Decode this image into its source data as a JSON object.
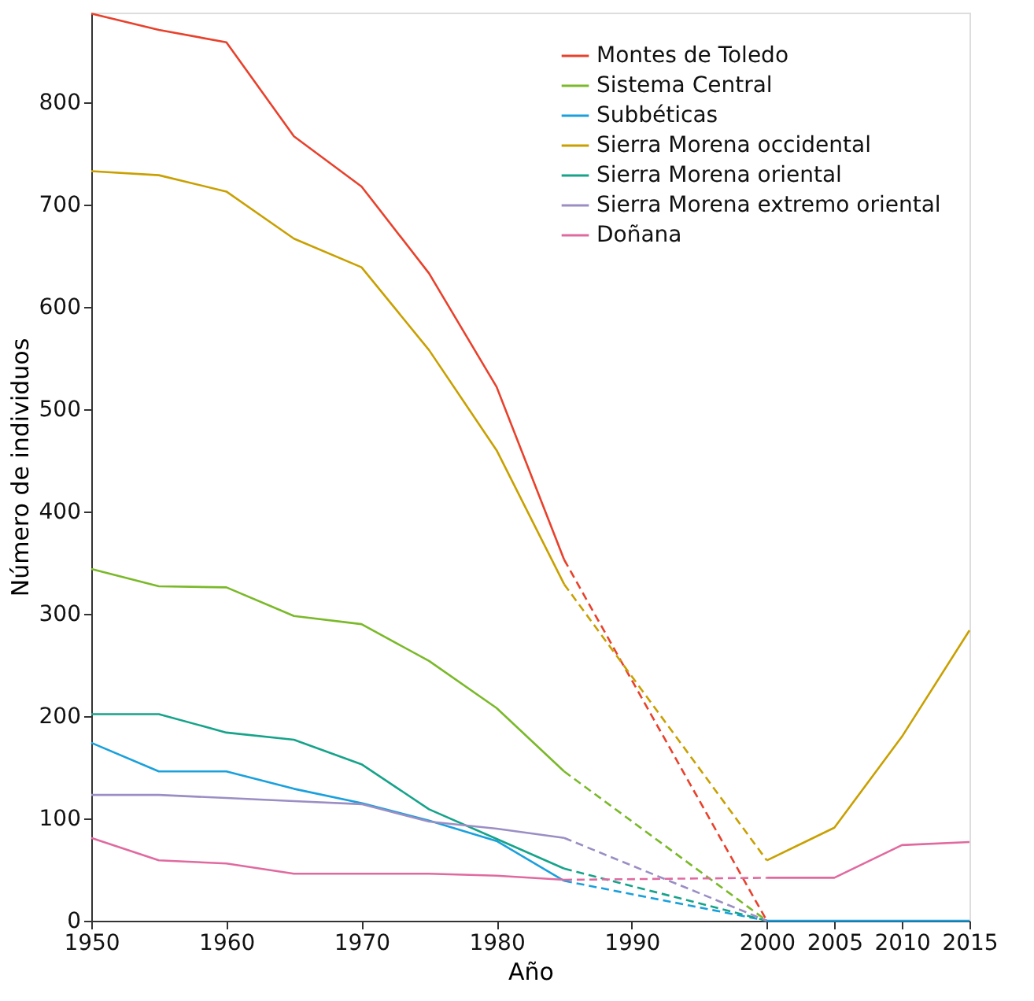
{
  "chart_data": {
    "type": "line",
    "xlabel": "Año",
    "ylabel": "Número de individuos",
    "xlim": [
      1950,
      2015
    ],
    "xticks": [
      1950,
      1960,
      1970,
      1980,
      1990,
      2000,
      2005,
      2010,
      2015
    ],
    "ylim": [
      0,
      888
    ],
    "yticks": [
      0,
      100,
      200,
      300,
      400,
      500,
      600,
      700,
      800
    ],
    "grid": false,
    "legend": "top right",
    "marker": "none",
    "series": [
      {
        "name": "Montes de Toledo",
        "color": "#e8412c",
        "line_style": "solid",
        "x": [
          1950,
          1955,
          1960,
          1965,
          1970,
          1975,
          1980,
          1985
        ],
        "values": [
          887,
          871,
          859,
          767,
          718,
          633,
          522,
          353
        ]
      },
      {
        "name": "Sistema Central",
        "color": "#7ab929",
        "line_style": "solid",
        "x": [
          1950,
          1955,
          1960,
          1965,
          1970,
          1975,
          1980,
          1985
        ],
        "values": [
          344,
          327,
          326,
          298,
          290,
          254,
          208,
          146
        ]
      },
      {
        "name": "Subbéticas",
        "color": "#1aa0dc",
        "line_style": "solid",
        "x": [
          1950,
          1955,
          1960,
          1965,
          1970,
          1975,
          1980,
          1985
        ],
        "values": [
          174,
          146,
          146,
          129,
          115,
          98,
          78,
          39
        ]
      },
      {
        "name": "Sierra Morena occidental",
        "color": "#c9a000",
        "line_style": "solid",
        "x": [
          1950,
          1955,
          1960,
          1965,
          1970,
          1975,
          1980,
          1985
        ],
        "values": [
          733,
          729,
          713,
          667,
          639,
          558,
          460,
          329
        ]
      },
      {
        "name": "Sierra Morena oriental",
        "color": "#16a38a",
        "line_style": "solid",
        "x": [
          1950,
          1955,
          1960,
          1965,
          1970,
          1975,
          1980,
          1985
        ],
        "values": [
          202,
          202,
          184,
          177,
          153,
          109,
          80,
          51
        ]
      },
      {
        "name": "Sierra Morena extremo oriental",
        "color": "#9b8ec4",
        "line_style": "solid",
        "x": [
          1950,
          1955,
          1960,
          1965,
          1970,
          1975,
          1980,
          1985
        ],
        "values": [
          123,
          123,
          120,
          117,
          114,
          97,
          90,
          81
        ]
      },
      {
        "name": "Doñana",
        "color": "#e06a9f",
        "line_style": "solid",
        "x": [
          1950,
          1955,
          1960,
          1965,
          1970,
          1975,
          1980,
          1985
        ],
        "values": [
          81,
          59,
          56,
          46,
          46,
          46,
          44,
          40
        ]
      },
      {
        "color": "#e8412c",
        "line_style": "dashed",
        "x": [
          1985,
          2000
        ],
        "values": [
          353,
          0
        ]
      },
      {
        "color": "#7ab929",
        "line_style": "dashed",
        "x": [
          1985,
          2000
        ],
        "values": [
          146,
          0
        ]
      },
      {
        "color": "#1aa0dc",
        "line_style": "dashed",
        "x": [
          1985,
          2000
        ],
        "values": [
          39,
          0
        ]
      },
      {
        "color": "#c9a000",
        "line_style": "dashed",
        "x": [
          1985,
          2000
        ],
        "values": [
          329,
          59
        ]
      },
      {
        "color": "#16a38a",
        "line_style": "dashed",
        "x": [
          1985,
          2000
        ],
        "values": [
          51,
          0
        ]
      },
      {
        "color": "#9b8ec4",
        "line_style": "dashed",
        "x": [
          1985,
          2000
        ],
        "values": [
          81,
          0
        ]
      },
      {
        "color": "#e06a9f",
        "line_style": "dashed",
        "x": [
          1985,
          2000
        ],
        "values": [
          40,
          42
        ]
      },
      {
        "color": "#c9a000",
        "line_style": "solid",
        "x": [
          2000,
          2005,
          2010,
          2015
        ],
        "values": [
          59,
          91,
          180,
          284
        ]
      },
      {
        "color": "#e06a9f",
        "line_style": "solid",
        "x": [
          2000,
          2005,
          2010,
          2015
        ],
        "values": [
          42,
          42,
          74,
          77
        ]
      },
      {
        "color": "#1aa0dc",
        "line_style": "solid",
        "x": [
          2000,
          2005,
          2010,
          2015
        ],
        "values": [
          0,
          0,
          0,
          0
        ]
      }
    ]
  }
}
